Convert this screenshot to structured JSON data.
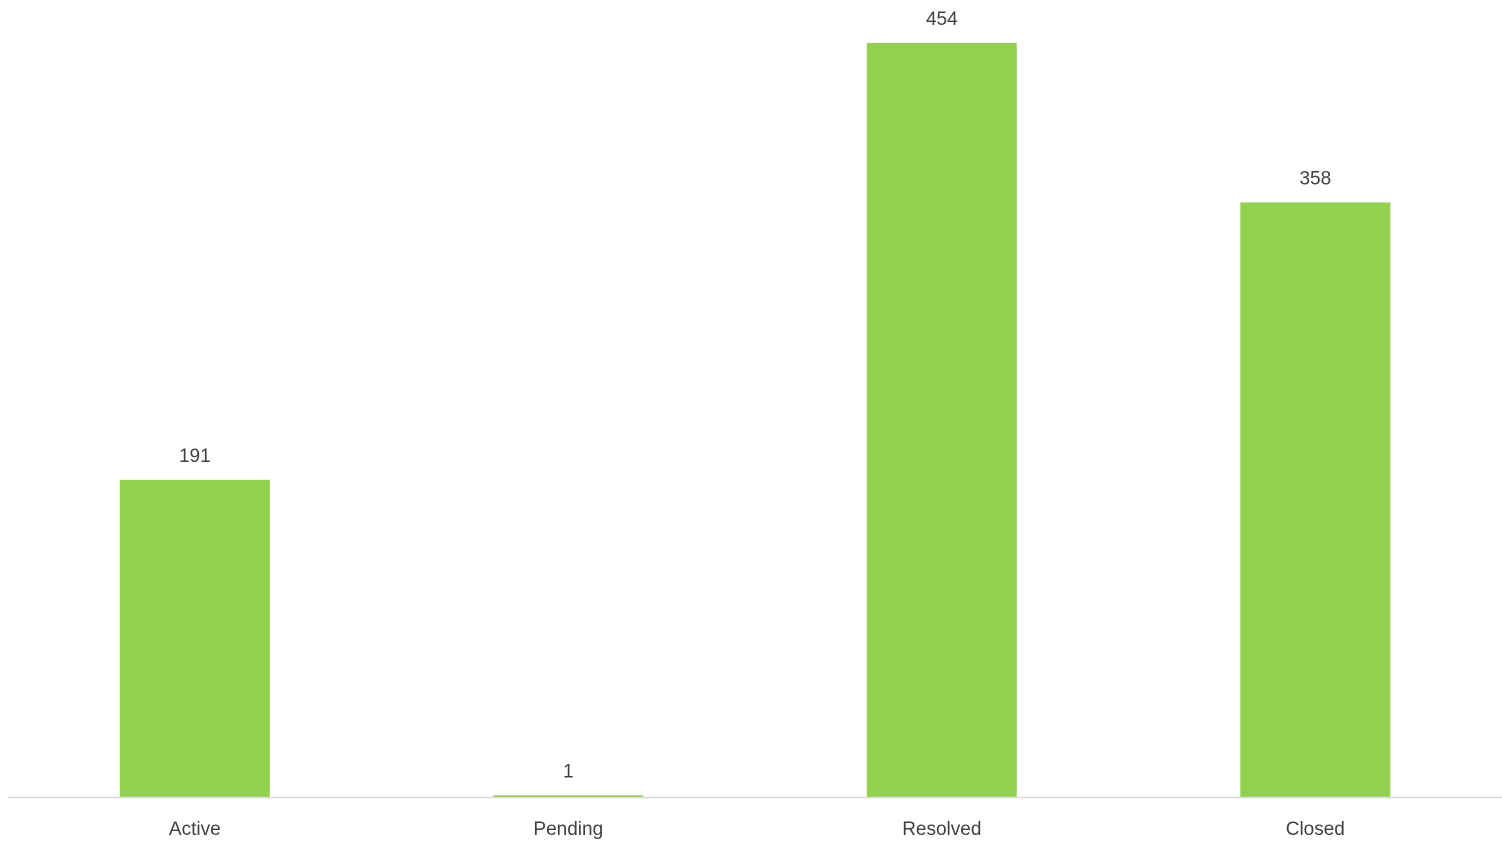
{
  "chart_data": {
    "type": "bar",
    "title": "",
    "xlabel": "",
    "ylabel": "",
    "categories": [
      "Active",
      "Pending",
      "Resolved",
      "Closed"
    ],
    "values": [
      191,
      1,
      454,
      358
    ],
    "data_labels": [
      "191",
      "1",
      "454",
      "358"
    ],
    "ylim": [
      0,
      454
    ],
    "grid": false,
    "legend": "none",
    "colors": {
      "bar": "#92d050",
      "axis": "#d9d9d9",
      "text": "#404040"
    }
  }
}
